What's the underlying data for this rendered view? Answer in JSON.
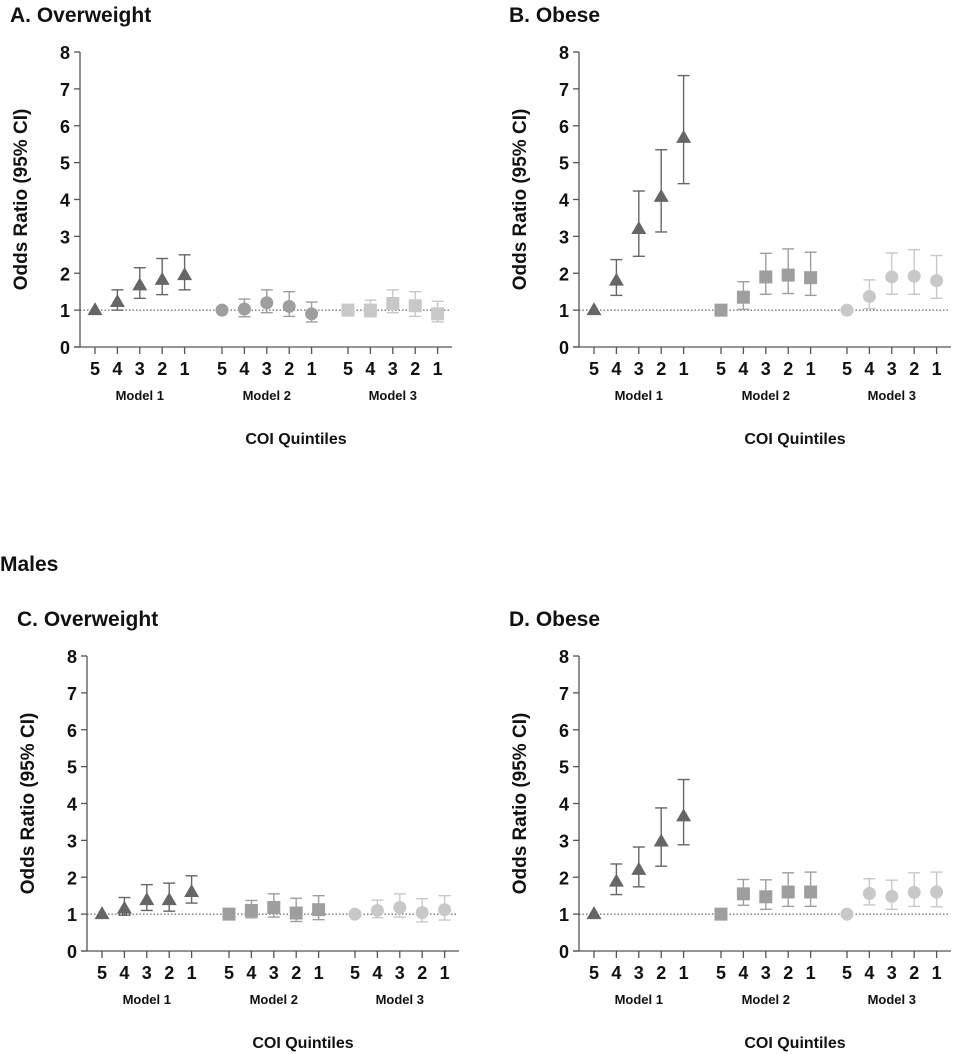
{
  "group_label": "Males",
  "chart_data": [
    {
      "type": "scatter",
      "title": "A.  Overweight",
      "ylabel": "Odds Ratio (95% CI)",
      "xlabel": "COI Quintiles",
      "ylim": [
        0,
        8
      ],
      "yticks": [
        0,
        1,
        2,
        3,
        4,
        5,
        6,
        7,
        8
      ],
      "reference_line": 1,
      "categories": [
        "5",
        "4",
        "3",
        "2",
        "1"
      ],
      "models": [
        {
          "name": "Model 1",
          "marker": "triangle",
          "color": "#666666",
          "or": [
            1.0,
            1.22,
            1.67,
            1.82,
            1.95
          ],
          "ci_low": [
            null,
            1.0,
            1.32,
            1.42,
            1.55
          ],
          "ci_high": [
            null,
            1.55,
            2.15,
            2.4,
            2.5
          ]
        },
        {
          "name": "Model 2",
          "marker": "circle",
          "color": "#9e9e9e",
          "or": [
            1.0,
            1.03,
            1.2,
            1.1,
            0.9
          ],
          "ci_low": [
            null,
            0.82,
            0.93,
            0.83,
            0.68
          ],
          "ci_high": [
            null,
            1.3,
            1.55,
            1.5,
            1.22
          ]
        },
        {
          "name": "Model 3",
          "marker": "square",
          "color": "#c8c8c8",
          "or": [
            1.0,
            1.0,
            1.18,
            1.12,
            0.9
          ],
          "ci_low": [
            null,
            0.82,
            0.93,
            0.83,
            0.68
          ],
          "ci_high": [
            null,
            1.27,
            1.55,
            1.5,
            1.24
          ]
        }
      ]
    },
    {
      "type": "scatter",
      "title": "B. Obese",
      "ylabel": "Odds Ratio (95% CI)",
      "xlabel": "COI Quintiles",
      "ylim": [
        0,
        8
      ],
      "yticks": [
        0,
        1,
        2,
        3,
        4,
        5,
        6,
        7,
        8
      ],
      "reference_line": 1,
      "categories": [
        "5",
        "4",
        "3",
        "2",
        "1"
      ],
      "models": [
        {
          "name": "Model 1",
          "marker": "triangle",
          "color": "#666666",
          "or": [
            1.0,
            1.8,
            3.2,
            4.07,
            5.67
          ],
          "ci_low": [
            null,
            1.4,
            2.46,
            3.12,
            4.43
          ],
          "ci_high": [
            null,
            2.37,
            4.23,
            5.35,
            7.36
          ]
        },
        {
          "name": "Model 2",
          "marker": "square",
          "color": "#9e9e9e",
          "or": [
            1.0,
            1.35,
            1.9,
            1.95,
            1.88
          ],
          "ci_low": [
            null,
            1.02,
            1.43,
            1.45,
            1.4
          ],
          "ci_high": [
            null,
            1.77,
            2.54,
            2.66,
            2.57
          ]
        },
        {
          "name": "Model 3",
          "marker": "circle",
          "color": "#c8c8c8",
          "or": [
            1.0,
            1.37,
            1.9,
            1.92,
            1.8
          ],
          "ci_low": [
            null,
            1.04,
            1.43,
            1.43,
            1.32
          ],
          "ci_high": [
            null,
            1.82,
            2.55,
            2.64,
            2.48
          ]
        }
      ]
    },
    {
      "type": "scatter",
      "title": "C. Overweight",
      "ylabel": "Odds Ratio (95% CI)",
      "xlabel": "COI Quintiles",
      "ylim": [
        0,
        8
      ],
      "yticks": [
        0,
        1,
        2,
        3,
        4,
        5,
        6,
        7,
        8
      ],
      "reference_line": 1,
      "categories": [
        "5",
        "4",
        "3",
        "2",
        "1"
      ],
      "models": [
        {
          "name": "Model 1",
          "marker": "triangle",
          "color": "#666666",
          "or": [
            1.0,
            1.15,
            1.38,
            1.38,
            1.6
          ],
          "ci_low": [
            null,
            0.97,
            1.1,
            1.08,
            1.3
          ],
          "ci_high": [
            null,
            1.45,
            1.8,
            1.84,
            2.04
          ]
        },
        {
          "name": "Model 2",
          "marker": "square",
          "color": "#9e9e9e",
          "or": [
            1.0,
            1.1,
            1.18,
            1.03,
            1.12
          ],
          "ci_low": [
            null,
            0.9,
            0.92,
            0.8,
            0.85
          ],
          "ci_high": [
            null,
            1.37,
            1.55,
            1.43,
            1.5
          ]
        },
        {
          "name": "Model 3",
          "marker": "circle",
          "color": "#c8c8c8",
          "or": [
            1.0,
            1.1,
            1.18,
            1.04,
            1.12
          ],
          "ci_low": [
            null,
            0.9,
            0.92,
            0.79,
            0.84
          ],
          "ci_high": [
            null,
            1.38,
            1.55,
            1.42,
            1.5
          ]
        }
      ]
    },
    {
      "type": "scatter",
      "title": "D. Obese",
      "ylabel": "Odds Ratio (95% CI)",
      "xlabel": "COI Quintiles",
      "ylim": [
        0,
        8
      ],
      "yticks": [
        0,
        1,
        2,
        3,
        4,
        5,
        6,
        7,
        8
      ],
      "reference_line": 1,
      "categories": [
        "5",
        "4",
        "3",
        "2",
        "1"
      ],
      "models": [
        {
          "name": "Model 1",
          "marker": "triangle",
          "color": "#666666",
          "or": [
            1.0,
            1.88,
            2.2,
            2.97,
            3.65
          ],
          "ci_low": [
            null,
            1.53,
            1.74,
            2.3,
            2.88
          ],
          "ci_high": [
            null,
            2.36,
            2.82,
            3.88,
            4.65
          ]
        },
        {
          "name": "Model 2",
          "marker": "square",
          "color": "#9e9e9e",
          "or": [
            1.0,
            1.55,
            1.47,
            1.6,
            1.6
          ],
          "ci_low": [
            null,
            1.24,
            1.13,
            1.21,
            1.21
          ],
          "ci_high": [
            null,
            1.94,
            1.93,
            2.12,
            2.14
          ]
        },
        {
          "name": "Model 3",
          "marker": "circle",
          "color": "#c8c8c8",
          "or": [
            1.0,
            1.56,
            1.48,
            1.59,
            1.6
          ],
          "ci_low": [
            null,
            1.25,
            1.13,
            1.21,
            1.2
          ],
          "ci_high": [
            null,
            1.96,
            1.92,
            2.12,
            2.14
          ]
        }
      ]
    }
  ]
}
